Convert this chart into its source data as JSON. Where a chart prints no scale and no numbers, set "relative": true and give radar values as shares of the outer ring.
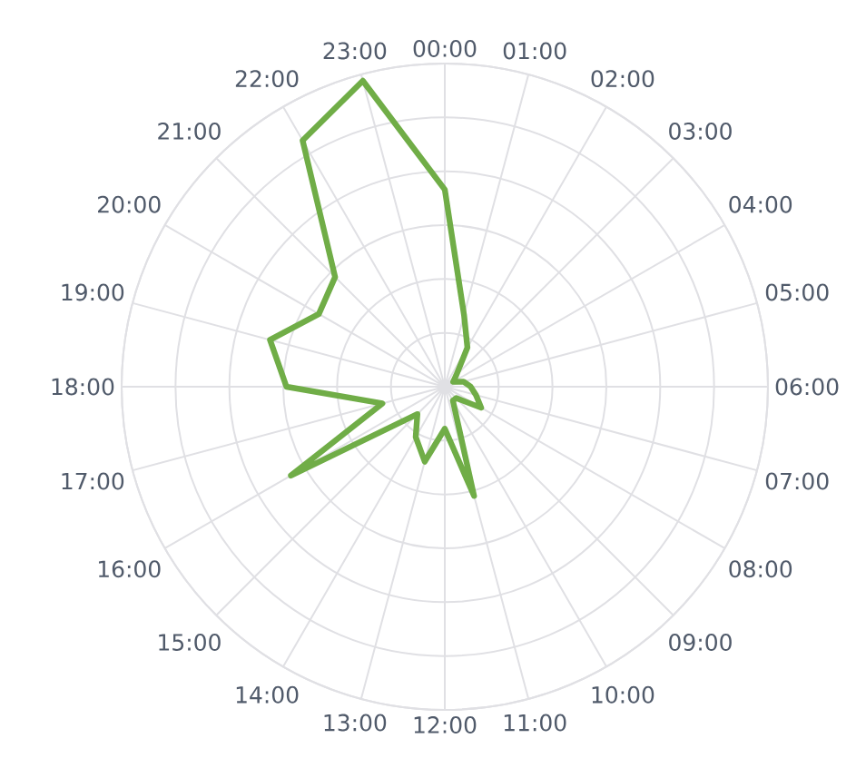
{
  "chart_data": {
    "type": "radar",
    "relative": true,
    "grid": true,
    "marker": "none",
    "categories": [
      "00:00",
      "01:00",
      "02:00",
      "03:00",
      "04:00",
      "05:00",
      "06:00",
      "07:00",
      "08:00",
      "09:00",
      "10:00",
      "11:00",
      "12:00",
      "13:00",
      "14:00",
      "15:00",
      "16:00",
      "17:00",
      "18:00",
      "19:00",
      "20:00",
      "21:00",
      "22:00",
      "23:00"
    ],
    "series": [
      {
        "color": "#70ad47",
        "values": [
          0.61,
          0.23,
          0.14,
          0.05,
          0.03,
          0.06,
          0.08,
          0.1,
          0.13,
          0.05,
          0.05,
          0.35,
          0.13,
          0.24,
          0.18,
          0.12,
          0.55,
          0.2,
          0.49,
          0.56,
          0.45,
          0.48,
          0.88,
          0.98
        ]
      }
    ]
  }
}
